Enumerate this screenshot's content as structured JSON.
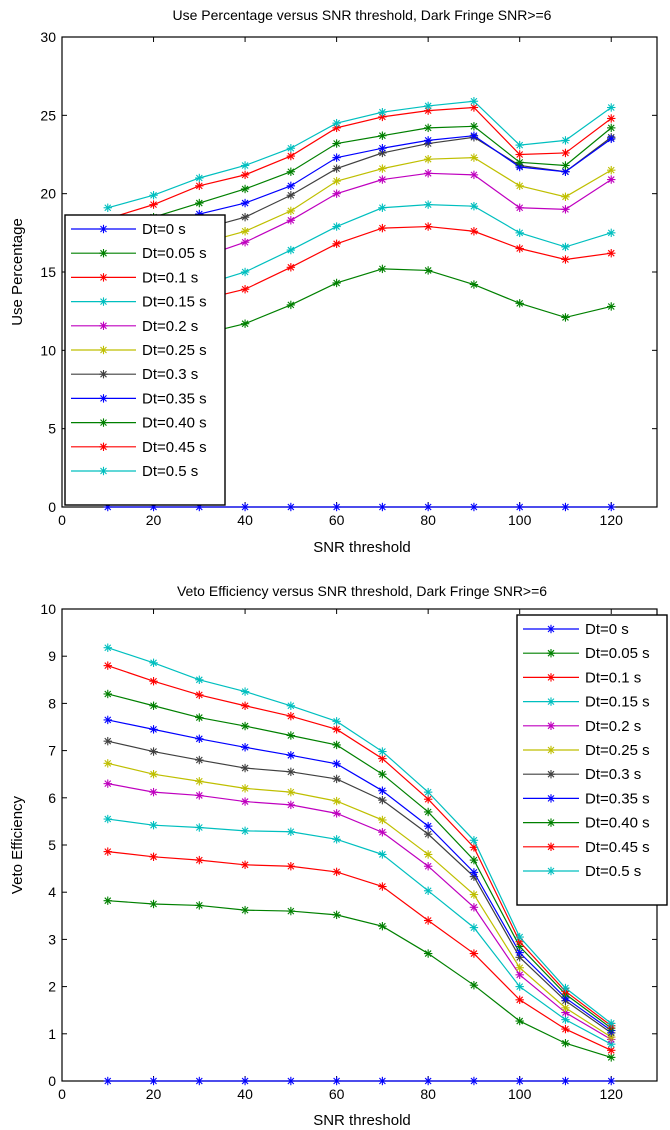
{
  "chart_data": [
    {
      "type": "line",
      "title": "Use Percentage versus SNR threshold, Dark Fringe SNR>=6",
      "xlabel": "SNR threshold",
      "ylabel": "Use Percentage",
      "xlim": [
        0,
        130
      ],
      "ylim": [
        0,
        30
      ],
      "xticks": [
        0,
        20,
        40,
        60,
        80,
        100,
        120
      ],
      "yticks": [
        0,
        5,
        10,
        15,
        20,
        25,
        30
      ],
      "x": [
        10,
        20,
        30,
        40,
        50,
        60,
        70,
        80,
        90,
        100,
        110,
        120
      ],
      "legend_position": "left",
      "series": [
        {
          "name": "Dt=0 s",
          "color": "#0000ff",
          "values": [
            0,
            0,
            0,
            0,
            0,
            0,
            0,
            0,
            0,
            0,
            0,
            0
          ]
        },
        {
          "name": "Dt=0.05 s",
          "color": "#008000",
          "values": [
            10.2,
            10.5,
            11.0,
            11.7,
            12.9,
            14.3,
            15.2,
            15.1,
            14.2,
            13.0,
            12.1,
            12.8
          ]
        },
        {
          "name": "Dt=0.1 s",
          "color": "#ff0000",
          "values": [
            12.2,
            12.7,
            13.2,
            13.9,
            15.3,
            16.8,
            17.8,
            17.9,
            17.6,
            16.5,
            15.8,
            16.2
          ]
        },
        {
          "name": "Dt=0.15 s",
          "color": "#00bfbf",
          "values": [
            13.0,
            13.6,
            14.1,
            15.0,
            16.4,
            17.9,
            19.1,
            19.3,
            19.2,
            17.5,
            16.6,
            17.5
          ]
        },
        {
          "name": "Dt=0.2 s",
          "color": "#bf00bf",
          "values": [
            14.6,
            15.3,
            15.9,
            16.9,
            18.3,
            20.0,
            20.9,
            21.3,
            21.2,
            19.1,
            19.0,
            20.9
          ]
        },
        {
          "name": "Dt=0.25 s",
          "color": "#bfbf00",
          "values": [
            15.3,
            16.1,
            16.8,
            17.6,
            18.9,
            20.8,
            21.6,
            22.2,
            22.3,
            20.5,
            19.8,
            21.5
          ]
        },
        {
          "name": "Dt=0.3 s",
          "color": "#404040",
          "values": [
            16.2,
            17.0,
            17.7,
            18.5,
            19.9,
            21.6,
            22.6,
            23.2,
            23.6,
            21.8,
            21.4,
            23.6
          ]
        },
        {
          "name": "Dt=0.35 s",
          "color": "#0000ff",
          "values": [
            16.9,
            17.8,
            18.7,
            19.4,
            20.5,
            22.3,
            22.9,
            23.4,
            23.7,
            21.7,
            21.4,
            23.5
          ]
        },
        {
          "name": "Dt=0.40 s",
          "color": "#008000",
          "values": [
            17.5,
            18.5,
            19.4,
            20.3,
            21.4,
            23.2,
            23.7,
            24.2,
            24.3,
            22.0,
            21.8,
            24.2
          ]
        },
        {
          "name": "Dt=0.45 s",
          "color": "#ff0000",
          "values": [
            18.4,
            19.3,
            20.5,
            21.2,
            22.4,
            24.2,
            24.9,
            25.3,
            25.5,
            22.5,
            22.6,
            24.8
          ]
        },
        {
          "name": "Dt=0.5 s",
          "color": "#00bfbf",
          "values": [
            19.1,
            19.9,
            21.0,
            21.8,
            22.9,
            24.5,
            25.2,
            25.6,
            25.9,
            23.1,
            23.4,
            25.5
          ]
        }
      ]
    },
    {
      "type": "line",
      "title": "Veto Efficiency versus SNR threshold, Dark Fringe SNR>=6",
      "xlabel": "SNR threshold",
      "ylabel": "Veto Efficiency",
      "xlim": [
        0,
        130
      ],
      "ylim": [
        0,
        10
      ],
      "xticks": [
        0,
        20,
        40,
        60,
        80,
        100,
        120
      ],
      "yticks": [
        0,
        1,
        2,
        3,
        4,
        5,
        6,
        7,
        8,
        9,
        10
      ],
      "x": [
        10,
        20,
        30,
        40,
        50,
        60,
        70,
        80,
        90,
        100,
        110,
        120
      ],
      "legend_position": "top-right",
      "series": [
        {
          "name": "Dt=0 s",
          "color": "#0000ff",
          "values": [
            0,
            0,
            0,
            0,
            0,
            0,
            0,
            0,
            0,
            0,
            0,
            0
          ]
        },
        {
          "name": "Dt=0.05 s",
          "color": "#008000",
          "values": [
            3.82,
            3.75,
            3.72,
            3.62,
            3.6,
            3.52,
            3.28,
            2.7,
            2.03,
            1.27,
            0.8,
            0.5
          ]
        },
        {
          "name": "Dt=0.1 s",
          "color": "#ff0000",
          "values": [
            4.86,
            4.75,
            4.68,
            4.58,
            4.55,
            4.43,
            4.12,
            3.4,
            2.7,
            1.72,
            1.1,
            0.65
          ]
        },
        {
          "name": "Dt=0.15 s",
          "color": "#00bfbf",
          "values": [
            5.55,
            5.42,
            5.37,
            5.3,
            5.28,
            5.12,
            4.8,
            4.03,
            3.25,
            2.0,
            1.3,
            0.78
          ]
        },
        {
          "name": "Dt=0.2 s",
          "color": "#bf00bf",
          "values": [
            6.3,
            6.12,
            6.05,
            5.92,
            5.85,
            5.67,
            5.27,
            4.55,
            3.68,
            2.25,
            1.45,
            0.88
          ]
        },
        {
          "name": "Dt=0.25 s",
          "color": "#bfbf00",
          "values": [
            6.73,
            6.5,
            6.35,
            6.2,
            6.12,
            5.93,
            5.53,
            4.8,
            3.95,
            2.4,
            1.55,
            0.93
          ]
        },
        {
          "name": "Dt=0.3 s",
          "color": "#404040",
          "values": [
            7.2,
            6.98,
            6.8,
            6.63,
            6.55,
            6.4,
            5.95,
            5.23,
            4.33,
            2.62,
            1.7,
            1.02
          ]
        },
        {
          "name": "Dt=0.35 s",
          "color": "#0000ff",
          "values": [
            7.65,
            7.45,
            7.25,
            7.07,
            6.9,
            6.72,
            6.15,
            5.4,
            4.42,
            2.72,
            1.76,
            1.07
          ]
        },
        {
          "name": "Dt=0.40 s",
          "color": "#008000",
          "values": [
            8.2,
            7.95,
            7.7,
            7.52,
            7.32,
            7.12,
            6.5,
            5.7,
            4.68,
            2.85,
            1.84,
            1.12
          ]
        },
        {
          "name": "Dt=0.45 s",
          "color": "#ff0000",
          "values": [
            8.8,
            8.47,
            8.18,
            7.95,
            7.73,
            7.45,
            6.83,
            5.97,
            4.95,
            2.95,
            1.9,
            1.17
          ]
        },
        {
          "name": "Dt=0.5 s",
          "color": "#00bfbf",
          "values": [
            9.18,
            8.86,
            8.5,
            8.25,
            7.95,
            7.62,
            6.98,
            6.12,
            5.1,
            3.05,
            1.97,
            1.22
          ]
        }
      ]
    }
  ]
}
